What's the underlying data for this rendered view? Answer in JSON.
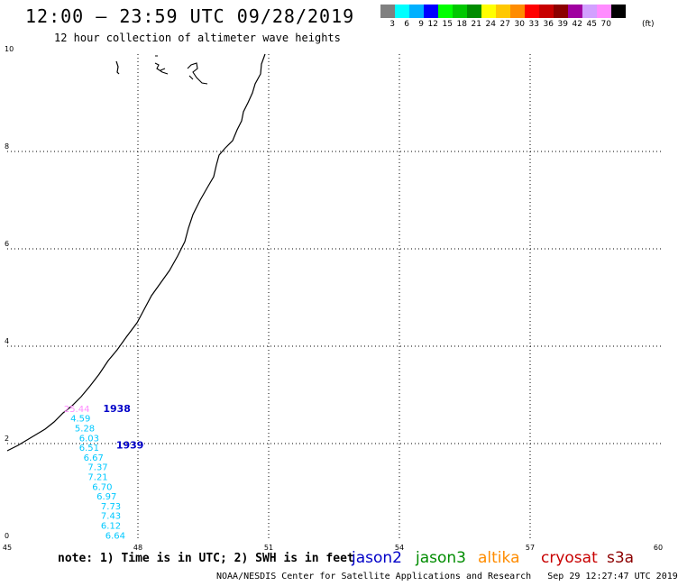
{
  "header": {
    "title": "12:00 — 23:59 UTC 09/28/2019",
    "subtitle": "12 hour collection of altimeter wave heights"
  },
  "legend": {
    "colors": [
      "#808080",
      "#00ffff",
      "#00b0ff",
      "#0000ff",
      "#00ff00",
      "#00c800",
      "#008c00",
      "#ffff00",
      "#ffc800",
      "#ff8c00",
      "#ff0000",
      "#c80000",
      "#8c0000",
      "#a000a0",
      "#d2a0ff",
      "#ff8cff",
      "#000000"
    ],
    "labels": [
      "3",
      "6",
      "9",
      "12",
      "15",
      "18",
      "21",
      "24",
      "27",
      "30",
      "33",
      "36",
      "39",
      "42",
      "45",
      "70"
    ],
    "unit": "(ft)"
  },
  "axes": {
    "x_ticks": [
      "45",
      "48",
      "51",
      "54",
      "57",
      "60"
    ],
    "y_ticks": [
      "0",
      "2",
      "4",
      "6",
      "8",
      "10"
    ],
    "x_range": [
      45,
      60
    ],
    "y_range": [
      0,
      10
    ]
  },
  "observations": [
    {
      "value": "25.44",
      "color": "#ff8cff",
      "lon": 46.3,
      "lat": 2.65
    },
    {
      "value": "4.59",
      "color": "#00c8ff",
      "lon": 46.45,
      "lat": 2.45
    },
    {
      "value": "5.28",
      "color": "#00c8ff",
      "lon": 46.55,
      "lat": 2.25
    },
    {
      "value": "6.03",
      "color": "#00c8ff",
      "lon": 46.65,
      "lat": 2.05
    },
    {
      "value": "6.51",
      "color": "#00c8ff",
      "lon": 46.65,
      "lat": 1.85
    },
    {
      "value": "6.67",
      "color": "#00c8ff",
      "lon": 46.75,
      "lat": 1.65
    },
    {
      "value": "7.37",
      "color": "#00c8ff",
      "lon": 46.85,
      "lat": 1.45
    },
    {
      "value": "7.21",
      "color": "#00c8ff",
      "lon": 46.85,
      "lat": 1.25
    },
    {
      "value": "6.70",
      "color": "#00c8ff",
      "lon": 46.95,
      "lat": 1.05
    },
    {
      "value": "6.97",
      "color": "#00c8ff",
      "lon": 47.05,
      "lat": 0.85
    },
    {
      "value": "7.73",
      "color": "#00c8ff",
      "lon": 47.15,
      "lat": 0.65
    },
    {
      "value": "7.43",
      "color": "#00c8ff",
      "lon": 47.15,
      "lat": 0.45
    },
    {
      "value": "6.12",
      "color": "#00c8ff",
      "lon": 47.15,
      "lat": 0.25
    },
    {
      "value": "6.64",
      "color": "#00c8ff",
      "lon": 47.25,
      "lat": 0.05
    }
  ],
  "pass_times": [
    {
      "label": "1938",
      "color": "#0000c8",
      "lon": 47.2,
      "lat": 2.65
    },
    {
      "label": "1939",
      "color": "#0000c8",
      "lon": 47.5,
      "lat": 1.9
    }
  ],
  "footer": {
    "note": "note: 1) Time is in UTC; 2) SWH is in feet",
    "satellites": [
      {
        "name": "jason2",
        "color": "#0000c8"
      },
      {
        "name": "jason3",
        "color": "#008c00"
      },
      {
        "name": "altika",
        "color": "#ff8c00"
      },
      {
        "name": "cryosat",
        "color": "#c80000"
      },
      {
        "name": "s3a",
        "color": "#8c0000"
      }
    ],
    "credit": "NOAA/NESDIS Center for Satellite Applications and Research",
    "timestamp": "Sep 29 12:27:47 UTC 2019"
  }
}
